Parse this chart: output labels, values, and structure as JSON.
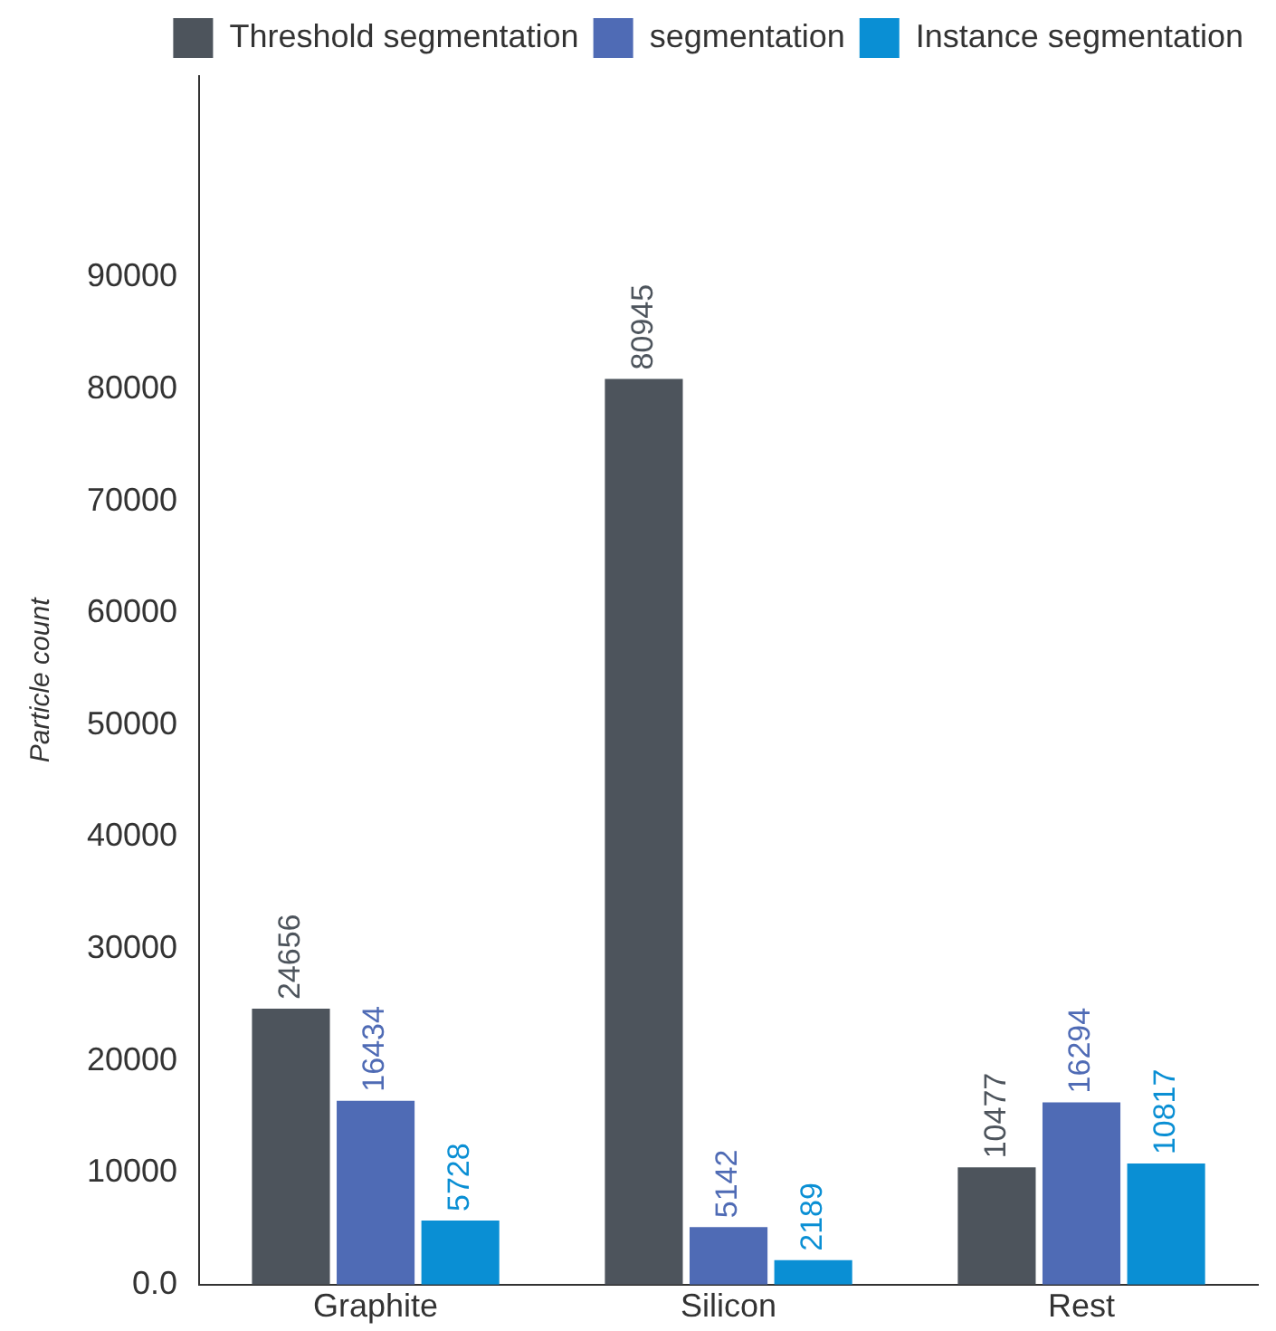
{
  "chart_data": {
    "type": "bar",
    "ylabel": "Particle count",
    "categories": [
      "Graphite",
      "Silicon",
      "Rest"
    ],
    "series": [
      {
        "name": "Threshold segmentation",
        "color": "#4d545c",
        "values": [
          24656,
          80945,
          10477
        ]
      },
      {
        "name": "segmentation",
        "color": "#4f6bb5",
        "values": [
          16434,
          5142,
          16294
        ]
      },
      {
        "name": "Instance segmentation",
        "color": "#0a8fd4",
        "values": [
          5728,
          2189,
          10817
        ]
      }
    ],
    "ylim": [
      0,
      108000
    ],
    "yticks": [
      {
        "value": 0,
        "label": "0.0"
      },
      10000,
      20000,
      30000,
      40000,
      50000,
      60000,
      70000,
      80000,
      90000
    ],
    "grid": false,
    "legend": "top right",
    "data_labels": true
  }
}
